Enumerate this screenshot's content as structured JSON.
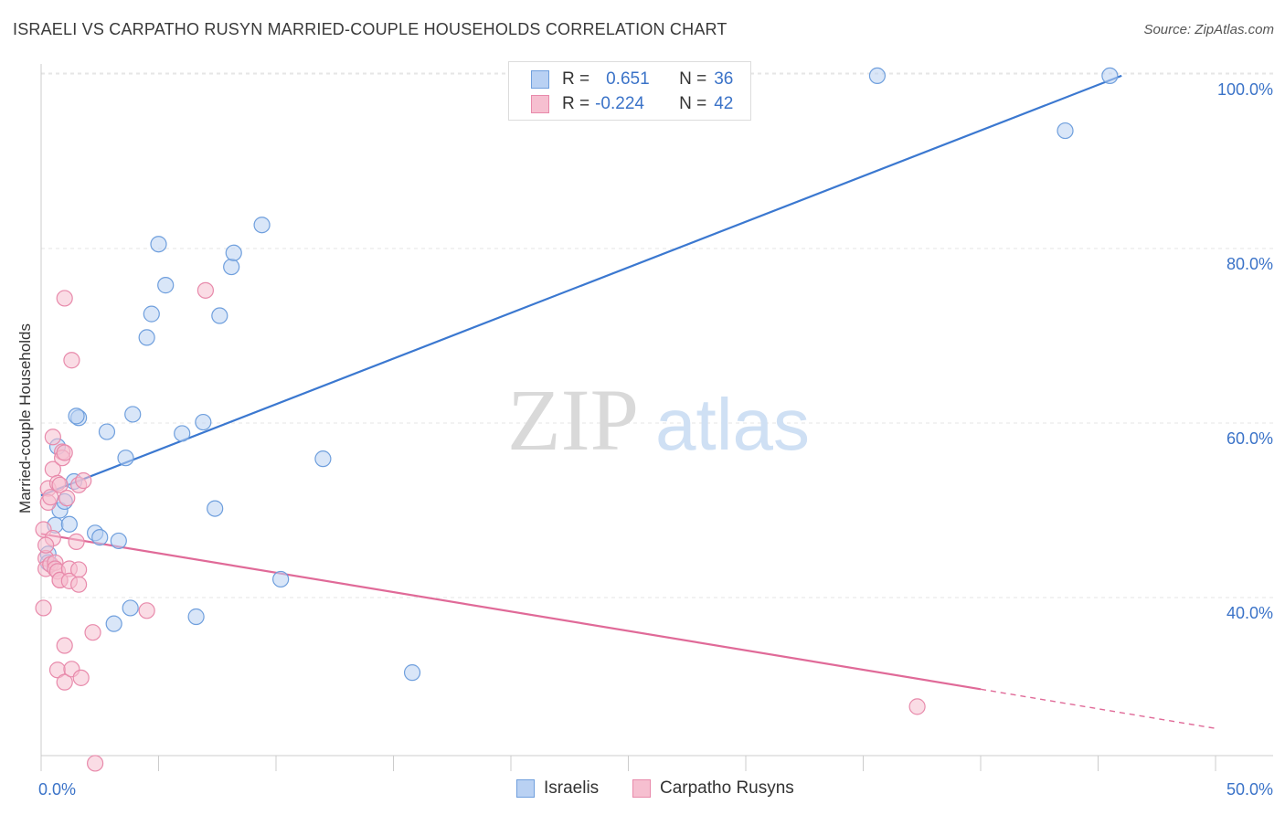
{
  "header": {
    "title": "ISRAELI VS CARPATHO RUSYN MARRIED-COUPLE HOUSEHOLDS CORRELATION CHART",
    "source": "Source: ZipAtlas.com"
  },
  "legend": {
    "israelis": {
      "r_label": "R =",
      "r_value": "0.651",
      "n_label": "N =",
      "n_value": "36"
    },
    "rusyns": {
      "r_label": "R =",
      "r_value": "-0.224",
      "n_label": "N =",
      "n_value": "42"
    }
  },
  "watermark": {
    "zip": "ZIP",
    "atlas": "atlas"
  },
  "colors": {
    "blue": "#3b78d0",
    "blue_fill": "#b9d1f3",
    "blue_stroke": "#6f9fdd",
    "pink": "#e06a98",
    "pink_fill": "#f6bfd0",
    "pink_stroke": "#e88aab",
    "axis_label": "#3b73c8",
    "grid": "#e6e6e6"
  },
  "chart_data": {
    "type": "scatter",
    "title": "ISRAELI VS CARPATHO RUSYN MARRIED-COUPLE HOUSEHOLDS CORRELATION CHART",
    "ylabel": "Married-couple Households",
    "xlim": [
      0,
      50
    ],
    "ylim": [
      20,
      102
    ],
    "x_tick_labels": [
      "0.0%",
      "50.0%"
    ],
    "y_ticks": [
      40,
      60,
      80,
      100
    ],
    "y_tick_labels": [
      "40.0%",
      "60.0%",
      "80.0%",
      "100.0%"
    ],
    "grid": true,
    "series": [
      {
        "name": "Israelis",
        "color": "#3b78d0",
        "points": [
          [
            0.3,
            45.0
          ],
          [
            0.3,
            44.0
          ],
          [
            0.6,
            48.3
          ],
          [
            0.7,
            57.3
          ],
          [
            0.8,
            50.0
          ],
          [
            1.0,
            51.0
          ],
          [
            1.2,
            48.4
          ],
          [
            1.4,
            53.3
          ],
          [
            1.6,
            60.6
          ],
          [
            1.5,
            60.8
          ],
          [
            2.3,
            47.4
          ],
          [
            2.5,
            46.9
          ],
          [
            2.8,
            59.0
          ],
          [
            3.3,
            46.5
          ],
          [
            3.6,
            56.0
          ],
          [
            3.9,
            61.0
          ],
          [
            3.8,
            38.8
          ],
          [
            3.1,
            37.0
          ],
          [
            4.5,
            69.8
          ],
          [
            4.7,
            72.5
          ],
          [
            5.0,
            80.5
          ],
          [
            5.3,
            75.8
          ],
          [
            6.0,
            58.8
          ],
          [
            6.6,
            37.8
          ],
          [
            6.9,
            60.1
          ],
          [
            7.4,
            50.2
          ],
          [
            7.6,
            72.3
          ],
          [
            8.1,
            77.9
          ],
          [
            8.2,
            79.5
          ],
          [
            9.4,
            82.7
          ],
          [
            10.2,
            42.1
          ],
          [
            12.0,
            55.9
          ],
          [
            15.8,
            31.4
          ],
          [
            35.6,
            99.8
          ],
          [
            43.6,
            93.5
          ],
          [
            45.5,
            99.8
          ]
        ],
        "trend": {
          "x": [
            0.0,
            46.0
          ],
          "y": [
            51.7,
            99.8
          ],
          "dashed_to": null
        }
      },
      {
        "name": "Carpatho Rusyns",
        "color": "#e06a98",
        "points": [
          [
            0.1,
            38.8
          ],
          [
            0.1,
            47.8
          ],
          [
            0.2,
            44.5
          ],
          [
            0.2,
            43.3
          ],
          [
            0.3,
            52.5
          ],
          [
            0.3,
            50.9
          ],
          [
            0.4,
            51.5
          ],
          [
            0.4,
            43.8
          ],
          [
            0.5,
            58.4
          ],
          [
            0.5,
            54.7
          ],
          [
            0.5,
            46.8
          ],
          [
            0.6,
            44.0
          ],
          [
            0.6,
            43.3
          ],
          [
            0.7,
            53.1
          ],
          [
            0.7,
            43.0
          ],
          [
            0.7,
            31.7
          ],
          [
            0.8,
            52.9
          ],
          [
            0.8,
            42.0
          ],
          [
            0.8,
            42.0
          ],
          [
            0.9,
            56.7
          ],
          [
            0.9,
            56.0
          ],
          [
            1.0,
            56.6
          ],
          [
            1.0,
            74.3
          ],
          [
            1.0,
            34.5
          ],
          [
            1.0,
            30.3
          ],
          [
            1.1,
            51.4
          ],
          [
            1.2,
            43.3
          ],
          [
            1.2,
            41.9
          ],
          [
            1.3,
            67.2
          ],
          [
            1.3,
            31.8
          ],
          [
            1.5,
            46.4
          ],
          [
            1.6,
            52.9
          ],
          [
            1.6,
            43.2
          ],
          [
            1.6,
            41.5
          ],
          [
            1.7,
            30.8
          ],
          [
            1.8,
            53.4
          ],
          [
            2.2,
            36.0
          ],
          [
            2.3,
            21.0
          ],
          [
            4.5,
            38.5
          ],
          [
            7.0,
            75.2
          ],
          [
            37.3,
            27.5
          ],
          [
            0.2,
            46.0
          ]
        ],
        "trend": {
          "x": [
            0.0,
            40.0
          ],
          "y": [
            47.3,
            29.5
          ],
          "dashed_to": [
            50.0,
            25.0
          ]
        }
      }
    ]
  },
  "bottom_legend": {
    "israelis_label": "Israelis",
    "rusyns_label": "Carpatho Rusyns"
  }
}
